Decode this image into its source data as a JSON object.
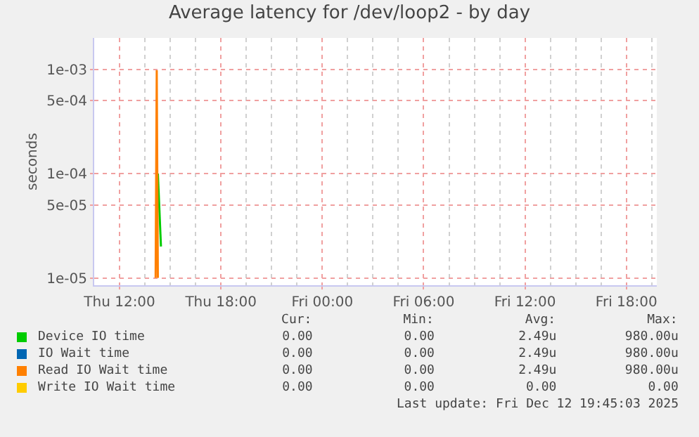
{
  "chart_data": {
    "type": "line",
    "title": "Average latency for /dev/loop2 - by day",
    "ylabel": "seconds",
    "series": [
      {
        "name": "Device IO time",
        "color": "#00cc00",
        "x": [
          "2025-12-11T14:16",
          "2025-12-11T14:27"
        ],
        "values": [
          0.0001,
          2e-05
        ]
      },
      {
        "name": "IO Wait time",
        "color": "#0066b3"
      },
      {
        "name": "Read IO Wait time",
        "color": "#ff8000",
        "x": [
          "2025-12-11T14:08",
          "2025-12-11T14:12",
          "2025-12-11T14:16"
        ],
        "values": [
          1e-05,
          0.00098,
          1e-05
        ]
      },
      {
        "name": "Write IO Wait time",
        "color": "#ffcc00"
      }
    ],
    "xlim": [
      "2025-12-11T10:30",
      "2025-12-12T19:48"
    ],
    "xticks": [
      {
        "value": "2025-12-11T12:00",
        "label": "Thu 12:00"
      },
      {
        "value": "2025-12-11T18:00",
        "label": "Thu 18:00"
      },
      {
        "value": "2025-12-12T00:00",
        "label": "Fri 00:00"
      },
      {
        "value": "2025-12-12T06:00",
        "label": "Fri 06:00"
      },
      {
        "value": "2025-12-12T12:00",
        "label": "Fri 12:00"
      },
      {
        "value": "2025-12-12T18:00",
        "label": "Fri 18:00"
      }
    ],
    "ylim": [
      8.5e-06,
      0.002
    ],
    "yticks": [
      {
        "value": 1e-05,
        "label": "1e-05"
      },
      {
        "value": 5e-05,
        "label": "5e-05"
      },
      {
        "value": 0.0001,
        "label": "1e-04"
      },
      {
        "value": 0.0005,
        "label": "5e-04"
      },
      {
        "value": 0.001,
        "label": "1e-03"
      }
    ],
    "log": "y",
    "grid": true,
    "legend": "bottom",
    "line_style": "solid",
    "marker": "none",
    "annotations": [
      "            Cur:            Min:            Avg:            Max:",
      "           0.00            0.00           2.49u         980.00u",
      "           0.00            0.00           2.49u         980.00u",
      "           0.00            0.00           2.49u         980.00u",
      "           0.00            0.00            0.00            0.00",
      "Last update: Fri Dec 12 19:45:03 2025"
    ]
  }
}
